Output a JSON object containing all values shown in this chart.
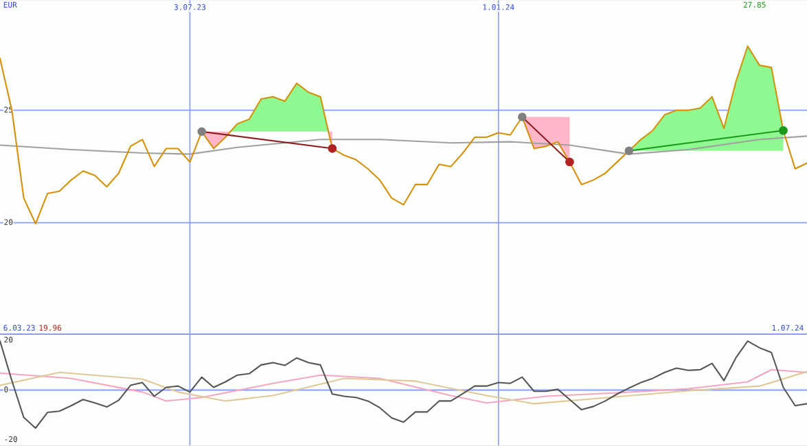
{
  "chart_data": [
    {
      "type": "line",
      "ylabel": "EUR",
      "x": [
        "2023-03-13",
        "2023-03-20",
        "2023-03-27",
        "2023-04-03",
        "2023-04-10",
        "2023-04-17",
        "2023-04-24",
        "2023-05-01",
        "2023-05-08",
        "2023-05-15",
        "2023-05-22",
        "2023-05-29",
        "2023-06-05",
        "2023-06-12",
        "2023-06-19",
        "2023-06-26",
        "2023-07-03",
        "2023-07-10",
        "2023-07-17",
        "2023-07-24",
        "2023-07-31",
        "2023-08-07",
        "2023-08-14",
        "2023-08-21",
        "2023-08-28",
        "2023-09-04",
        "2023-09-11",
        "2023-09-18",
        "2023-09-25",
        "2023-10-02",
        "2023-10-09",
        "2023-10-16",
        "2023-10-23",
        "2023-10-30",
        "2023-11-06",
        "2023-11-13",
        "2023-11-20",
        "2023-11-27",
        "2023-12-04",
        "2023-12-11",
        "2023-12-18",
        "2023-12-25",
        "2024-01-01",
        "2024-01-08",
        "2024-01-15",
        "2024-01-22",
        "2024-01-29",
        "2024-02-05",
        "2024-02-12",
        "2024-02-19",
        "2024-02-26",
        "2024-03-04",
        "2024-03-11",
        "2024-03-18",
        "2024-03-25",
        "2024-04-01",
        "2024-04-08",
        "2024-04-15",
        "2024-04-22",
        "2024-04-29",
        "2024-05-06",
        "2024-05-13",
        "2024-05-20",
        "2024-05-27",
        "2024-06-03",
        "2024-06-10",
        "2024-06-17",
        "2024-06-24",
        "2024-07-01"
      ],
      "xlim": [
        "2023-03-13",
        "2024-07-01"
      ],
      "xticks": [
        {
          "value": "2023-07-03",
          "label": "3.07.23"
        },
        {
          "value": "2024-01-01",
          "label": "1.01.24"
        }
      ],
      "ylim": [
        15.05,
        29.9
      ],
      "yticks": [
        20,
        25
      ],
      "grid": true,
      "series": [
        {
          "type": "line",
          "color": "#a0a0a0",
          "x": [
            "2023-03-13",
            "2023-04-24",
            "2023-06-05",
            "2023-07-03",
            "2023-07-31",
            "2023-09-18",
            "2023-10-23",
            "2023-12-04",
            "2024-01-08",
            "2024-02-12",
            "2024-03-18",
            "2024-04-22",
            "2024-06-03",
            "2024-07-01"
          ],
          "values": [
            23.45,
            23.25,
            23.1,
            23.05,
            23.35,
            23.7,
            23.7,
            23.55,
            23.6,
            23.45,
            23.05,
            23.25,
            23.7,
            23.85
          ]
        },
        {
          "color": "#d4900a",
          "values": [
            27.3,
            25.0,
            21.1,
            19.96,
            21.3,
            21.4,
            21.9,
            22.3,
            22.1,
            21.6,
            22.2,
            23.4,
            23.7,
            22.5,
            23.3,
            23.3,
            22.7,
            24.05,
            23.3,
            23.8,
            24.4,
            24.6,
            25.5,
            25.6,
            25.4,
            26.2,
            25.8,
            25.6,
            23.3,
            23.0,
            22.8,
            22.4,
            21.9,
            21.1,
            20.8,
            21.7,
            21.7,
            22.6,
            22.5,
            23.1,
            23.8,
            23.8,
            24.0,
            23.9,
            24.7,
            23.3,
            23.4,
            23.6,
            22.7,
            21.7,
            21.9,
            22.2,
            22.7,
            23.2,
            23.7,
            24.1,
            24.8,
            25.0,
            25.0,
            25.1,
            25.6,
            24.2,
            26.25,
            27.85,
            27.0,
            26.9,
            24.1,
            22.4,
            22.65
          ]
        },
        {
          "type": "line",
          "color": "#8b1a1a",
          "marker": "circle",
          "x": [
            "2023-07-10",
            "2023-09-25"
          ],
          "values": [
            24.05,
            23.3
          ],
          "colors": [
            "#808080",
            "#b22222"
          ]
        },
        {
          "type": "line",
          "color": "#8b1a1a",
          "marker": "circle",
          "x": [
            "2024-01-15",
            "2024-02-12"
          ],
          "values": [
            24.7,
            22.7
          ],
          "colors": [
            "#808080",
            "#b22222"
          ]
        },
        {
          "type": "line",
          "color": "#1a9a1a",
          "marker": "circle",
          "x": [
            "2024-03-18",
            "2024-06-17"
          ],
          "values": [
            23.2,
            24.1
          ],
          "colors": [
            "#808080",
            "#1a9a1a"
          ]
        }
      ],
      "annotations": [
        "27.85",
        "19.96",
        "6.03.23",
        "1.07.24"
      ]
    },
    {
      "type": "line",
      "xlim": [
        "2023-03-13",
        "2024-07-01"
      ],
      "xticks": [
        {
          "value": "2023-07-03",
          "label": null
        },
        {
          "value": "2024-01-01",
          "label": null
        }
      ],
      "ylim": [
        -22.5,
        22.2
      ],
      "yticks": [
        -20,
        0,
        20
      ],
      "grid": "x",
      "tick_labels": "y",
      "ref_lines": [
        {
          "axis": "y",
          "value": 0,
          "label": null
        }
      ],
      "series": [
        {
          "color": "#f4a6c0",
          "x": [
            "2023-03-13",
            "2023-04-24",
            "2023-06-05",
            "2023-06-19",
            "2023-07-10",
            "2023-08-21",
            "2023-09-18",
            "2023-10-23",
            "2023-12-04",
            "2023-12-25",
            "2024-01-29",
            "2024-03-11",
            "2024-04-22",
            "2024-05-27",
            "2024-06-10",
            "2024-07-01"
          ],
          "values": [
            6.8,
            4.7,
            -0.8,
            -4.4,
            -3,
            2.7,
            6,
            4.7,
            -2.2,
            -5.2,
            -2.5,
            -1.1,
            0.5,
            3.3,
            8.2,
            7.1
          ]
        },
        {
          "color": "#e0c898",
          "x": [
            "2023-03-13",
            "2023-04-17",
            "2023-06-05",
            "2023-06-26",
            "2023-07-24",
            "2023-08-21",
            "2023-10-02",
            "2023-11-13",
            "2023-12-25",
            "2024-01-22",
            "2024-03-11",
            "2024-04-22",
            "2024-06-03",
            "2024-07-01"
          ],
          "values": [
            1.9,
            7.1,
            4.4,
            -0.8,
            -4.4,
            -2.2,
            4.7,
            3.6,
            -2.2,
            -5.5,
            -2.7,
            -0.3,
            1.6,
            7.4
          ]
        },
        {
          "color": "#555555",
          "x": [
            "2023-03-13",
            "2023-03-20",
            "2023-03-27",
            "2023-04-03",
            "2023-04-10",
            "2023-04-17",
            "2023-04-24",
            "2023-05-01",
            "2023-05-08",
            "2023-05-15",
            "2023-05-22",
            "2023-05-29",
            "2023-06-05",
            "2023-06-12",
            "2023-06-19",
            "2023-06-26",
            "2023-07-03",
            "2023-07-10",
            "2023-07-17",
            "2023-07-24",
            "2023-07-31",
            "2023-08-07",
            "2023-08-14",
            "2023-08-21",
            "2023-08-28",
            "2023-09-04",
            "2023-09-11",
            "2023-09-18",
            "2023-09-25",
            "2023-10-02",
            "2023-10-09",
            "2023-10-16",
            "2023-10-23",
            "2023-10-30",
            "2023-11-06",
            "2023-11-13",
            "2023-11-20",
            "2023-11-27",
            "2023-12-04",
            "2023-12-11",
            "2023-12-18",
            "2023-12-25",
            "2024-01-01",
            "2024-01-08",
            "2024-01-15",
            "2024-01-22",
            "2024-01-29",
            "2024-02-05",
            "2024-02-12",
            "2024-02-19",
            "2024-02-26",
            "2024-03-04",
            "2024-03-11",
            "2024-03-18",
            "2024-03-25",
            "2024-04-01",
            "2024-04-08",
            "2024-04-15",
            "2024-04-22",
            "2024-04-29",
            "2024-05-06",
            "2024-05-13",
            "2024-05-20",
            "2024-05-27",
            "2024-06-03",
            "2024-06-10",
            "2024-06-17",
            "2024-06-24",
            "2024-07-01"
          ],
          "values": [
            19.7,
            3.8,
            -11,
            -15.3,
            -9,
            -8.5,
            -6.3,
            -3.8,
            -5.2,
            -6.8,
            -4.1,
            1.9,
            3,
            -2.5,
            1.1,
            1.6,
            -0.8,
            5.2,
            1.1,
            3.3,
            6,
            6.6,
            10.1,
            11,
            9.9,
            12.9,
            11,
            10.1,
            -1.6,
            -2.5,
            -3,
            -4.4,
            -7.1,
            -11.2,
            -12.9,
            -8.8,
            -8.8,
            -4.4,
            -4.4,
            -1.4,
            1.6,
            1.6,
            3,
            2.7,
            5.2,
            -0.5,
            -0.5,
            0.3,
            -3.8,
            -7.9,
            -6.6,
            -4.4,
            -1.6,
            0.8,
            3,
            4.7,
            7.1,
            8.8,
            7.9,
            8.2,
            10.7,
            3.8,
            12.9,
            19.7,
            17,
            15.1,
            1.1,
            -6.3,
            -5.5
          ]
        }
      ]
    }
  ]
}
